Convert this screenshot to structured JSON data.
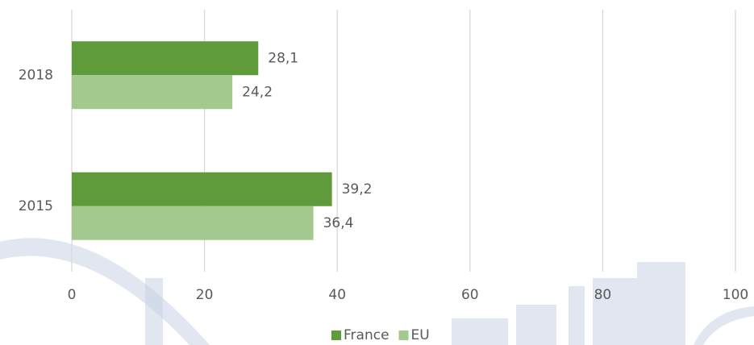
{
  "chart_data": {
    "type": "bar",
    "orientation": "horizontal",
    "categories": [
      "2018",
      "2015"
    ],
    "series": [
      {
        "name": "France",
        "color": "#5f9b3b",
        "values": [
          28.1,
          39.2
        ],
        "value_labels": [
          "28,1",
          "39,2"
        ]
      },
      {
        "name": "EU",
        "color": "#a4c98f",
        "values": [
          24.2,
          36.4
        ],
        "value_labels": [
          "24,2",
          "36,4"
        ]
      }
    ],
    "xlim": [
      0,
      100
    ],
    "xticks": [
      0,
      20,
      40,
      60,
      80,
      100
    ],
    "grid": true,
    "legend": "bottom"
  }
}
